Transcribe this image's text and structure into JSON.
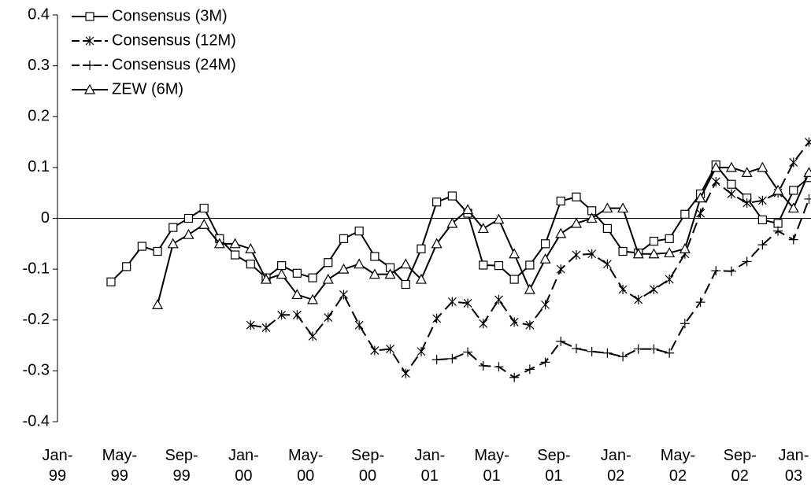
{
  "chart_data": {
    "type": "line",
    "categories": [
      "Jan-99",
      null,
      null,
      null,
      "May-99",
      null,
      null,
      null,
      "Sep-99",
      null,
      null,
      null,
      "Jan-00",
      null,
      null,
      null,
      "May-00",
      null,
      null,
      null,
      "Sep-00",
      null,
      null,
      null,
      "Jan-01",
      null,
      null,
      null,
      "May-01",
      null,
      null,
      null,
      "Sep-01",
      null,
      null,
      null,
      "Jan-02",
      null,
      null,
      null,
      "May-02",
      null,
      null,
      null,
      "Sep-02",
      null,
      null,
      null,
      "Jan-03"
    ],
    "ylim": [
      -0.4,
      0.4
    ],
    "yticks": [
      -0.4,
      -0.3,
      -0.2,
      -0.1,
      0,
      0.1,
      0.2,
      0.3,
      0.4
    ],
    "legend": "upper left",
    "series": [
      {
        "name": "Consensus (3M)",
        "color": "#000000",
        "marker": "square",
        "dashed": false,
        "values": [
          null,
          null,
          null,
          -0.125,
          -0.095,
          -0.055,
          -0.065,
          -0.018,
          0.0,
          0.02,
          -0.04,
          -0.072,
          -0.09,
          -0.117,
          -0.093,
          -0.108,
          -0.117,
          -0.087,
          -0.04,
          -0.025,
          -0.075,
          -0.097,
          -0.13,
          -0.06,
          0.032,
          0.044,
          0.01,
          -0.092,
          -0.093,
          -0.12,
          -0.092,
          -0.05,
          0.034,
          0.042,
          0.015,
          -0.02,
          -0.065,
          -0.068,
          -0.045,
          -0.04,
          0.008,
          0.048,
          0.105,
          0.067,
          0.04,
          -0.003,
          -0.01,
          0.055,
          0.08
        ]
      },
      {
        "name": "Consensus (12M)",
        "color": "#000000",
        "marker": "star",
        "dashed": true,
        "values": [
          null,
          null,
          null,
          null,
          null,
          null,
          null,
          null,
          null,
          null,
          null,
          null,
          -0.21,
          -0.215,
          -0.19,
          -0.19,
          -0.232,
          -0.195,
          -0.15,
          -0.21,
          -0.26,
          -0.257,
          -0.305,
          -0.262,
          -0.197,
          -0.164,
          -0.167,
          -0.207,
          -0.16,
          -0.204,
          -0.21,
          -0.17,
          -0.1,
          -0.072,
          -0.07,
          -0.09,
          -0.14,
          -0.16,
          -0.14,
          -0.12,
          -0.07,
          0.01,
          0.072,
          0.048,
          0.03,
          0.035,
          0.05,
          0.11,
          0.15
        ]
      },
      {
        "name": "Consensus (24M)",
        "color": "#000000",
        "marker": "plus",
        "dashed": true,
        "values": [
          null,
          null,
          null,
          null,
          null,
          null,
          null,
          null,
          null,
          null,
          null,
          null,
          null,
          null,
          null,
          null,
          null,
          null,
          null,
          null,
          null,
          null,
          null,
          null,
          -0.278,
          -0.276,
          -0.263,
          -0.29,
          -0.292,
          -0.313,
          -0.297,
          -0.283,
          -0.242,
          -0.256,
          -0.262,
          -0.265,
          -0.272,
          -0.257,
          -0.257,
          -0.265,
          -0.207,
          -0.165,
          -0.103,
          -0.104,
          -0.085,
          -0.052,
          -0.025,
          -0.042,
          0.038
        ]
      },
      {
        "name": "ZEW (6M)",
        "color": "#000000",
        "marker": "triangle",
        "dashed": false,
        "values": [
          null,
          null,
          null,
          null,
          null,
          null,
          -0.17,
          -0.05,
          -0.032,
          -0.012,
          -0.05,
          -0.05,
          -0.06,
          -0.12,
          -0.11,
          -0.15,
          -0.16,
          -0.12,
          -0.1,
          -0.09,
          -0.11,
          -0.11,
          -0.09,
          -0.12,
          -0.05,
          -0.01,
          0.017,
          -0.02,
          -0.002,
          -0.07,
          -0.14,
          -0.08,
          -0.03,
          -0.01,
          0.0,
          0.02,
          0.02,
          -0.07,
          -0.07,
          -0.068,
          -0.06,
          0.04,
          0.1,
          0.1,
          0.09,
          0.1,
          0.055,
          0.02,
          0.09
        ]
      }
    ]
  }
}
